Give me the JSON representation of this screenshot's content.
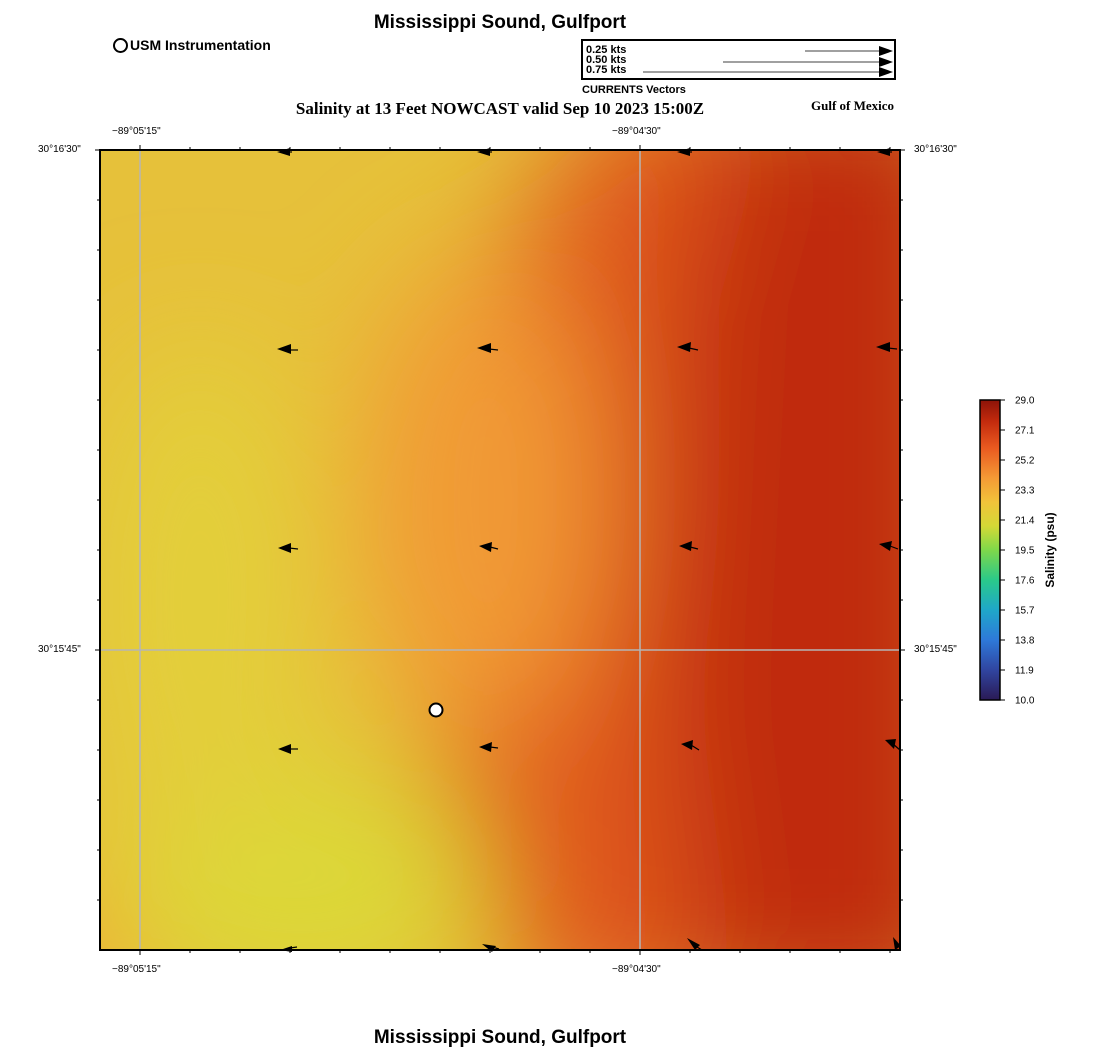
{
  "header": {
    "title": "Mississippi Sound, Gulfport",
    "subtitle": "Salinity at 13 Feet NOWCAST valid Sep 10 2023 15:00Z",
    "region": "Gulf of Mexico",
    "footer_title": "Mississippi Sound, Gulfport"
  },
  "instrument_legend": {
    "label": "USM Instrumentation"
  },
  "vector_legend": {
    "caption": "CURRENTS Vectors",
    "entries": [
      {
        "label": "0.25 kts",
        "speed": 0.25
      },
      {
        "label": "0.50 kts",
        "speed": 0.5
      },
      {
        "label": "0.75 kts",
        "speed": 0.75
      }
    ]
  },
  "axes": {
    "lon_ticks": [
      "−89°05'15\"",
      "−89°04'30\""
    ],
    "lat_ticks": [
      "30°16'30\"",
      "30°15'45\""
    ]
  },
  "colorbar": {
    "label": "Salinity (psu)",
    "ticks": [
      "29.0",
      "27.1",
      "25.2",
      "23.3",
      "21.4",
      "19.5",
      "17.6",
      "15.7",
      "13.8",
      "11.9",
      "10.0"
    ],
    "min": 10.0,
    "max": 29.0
  },
  "colors": {
    "field_low": "#e4d63a",
    "field_mid": "#f2a33a",
    "field_high": "#b51d05"
  }
}
